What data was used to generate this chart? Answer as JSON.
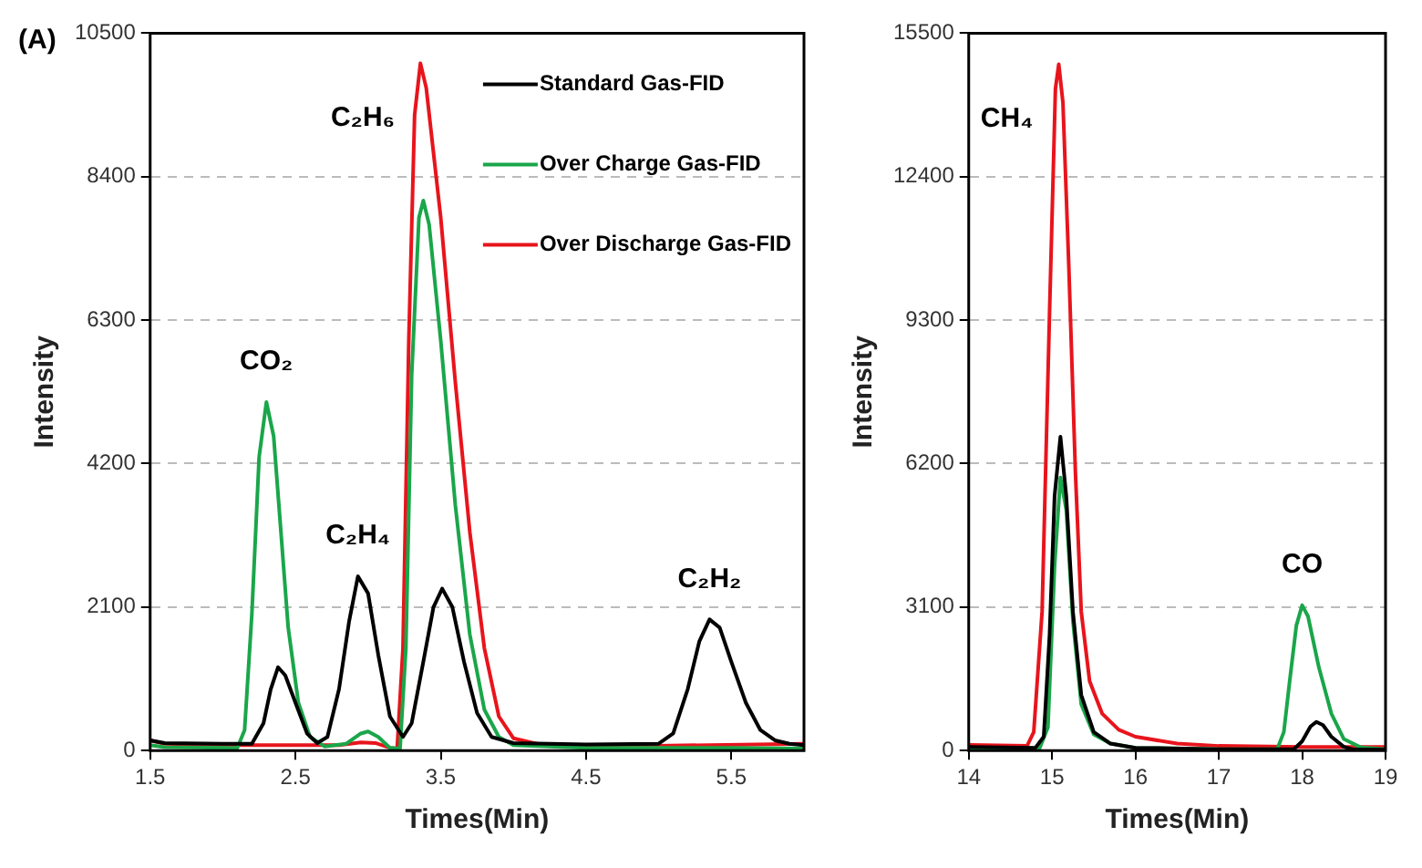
{
  "chart_data": [
    {
      "type": "line",
      "xlabel": "Times(Min)",
      "ylabel": "Intensity",
      "xlim": [
        1.5,
        6.0
      ],
      "xticks": [
        1.5,
        2.5,
        3.5,
        4.5,
        5.5
      ],
      "ylim": [
        0,
        10500
      ],
      "yticks": [
        0,
        2100,
        4200,
        6300,
        8400,
        10500
      ],
      "grid": "y",
      "legend": "top right",
      "annotations": [
        "(A)",
        {
          "text": "CO₂",
          "x": 2.3,
          "y": 5100
        },
        {
          "text": "C₂H₄",
          "x": 2.93,
          "y": 2550
        },
        {
          "text": "C₂H₆",
          "x": 3.36,
          "y": 10060
        },
        {
          "text": "C₂H₂",
          "x": 5.35,
          "y": 1920
        }
      ],
      "series": [
        {
          "name": "Standard Gas-FID",
          "color": "#000000",
          "x": [
            1.5,
            1.6,
            2.0,
            2.2,
            2.28,
            2.33,
            2.38,
            2.43,
            2.5,
            2.58,
            2.65,
            2.72,
            2.8,
            2.87,
            2.93,
            3.0,
            3.07,
            3.15,
            3.24,
            3.3,
            3.38,
            3.45,
            3.51,
            3.58,
            3.66,
            3.75,
            3.85,
            4.0,
            4.5,
            5.0,
            5.1,
            5.2,
            5.28,
            5.35,
            5.42,
            5.5,
            5.6,
            5.7,
            5.8,
            5.9,
            6.0
          ],
          "values": [
            150,
            110,
            100,
            100,
            400,
            900,
            1220,
            1100,
            700,
            250,
            110,
            200,
            900,
            1900,
            2550,
            2300,
            1400,
            500,
            200,
            400,
            1300,
            2100,
            2370,
            2100,
            1300,
            550,
            200,
            110,
            90,
            100,
            250,
            900,
            1600,
            1920,
            1800,
            1300,
            700,
            300,
            150,
            100,
            80
          ]
        },
        {
          "name": "Over Charge Gas-FID",
          "color": "#1aa64a",
          "x": [
            1.5,
            1.6,
            2.1,
            2.15,
            2.2,
            2.25,
            2.3,
            2.35,
            2.4,
            2.45,
            2.52,
            2.6,
            2.7,
            2.85,
            2.95,
            3.0,
            3.07,
            3.15,
            3.22,
            3.26,
            3.3,
            3.35,
            3.38,
            3.42,
            3.5,
            3.6,
            3.7,
            3.8,
            3.9,
            4.0,
            4.5,
            5.5,
            6.0
          ],
          "values": [
            80,
            50,
            40,
            300,
            2000,
            4300,
            5100,
            4600,
            3200,
            1800,
            700,
            200,
            60,
            100,
            250,
            280,
            200,
            40,
            30,
            1500,
            5500,
            7800,
            8050,
            7700,
            6000,
            3600,
            1700,
            600,
            200,
            80,
            40,
            40,
            30
          ]
        },
        {
          "name": "Over Discharge Gas-FID",
          "color": "#e8141c",
          "x": [
            1.5,
            1.6,
            2.0,
            2.8,
            2.95,
            3.05,
            3.15,
            3.2,
            3.24,
            3.28,
            3.32,
            3.36,
            3.4,
            3.5,
            3.6,
            3.7,
            3.8,
            3.9,
            4.0,
            4.2,
            5.0,
            6.0
          ],
          "values": [
            150,
            100,
            80,
            80,
            120,
            110,
            40,
            30,
            1500,
            6000,
            9300,
            10060,
            9700,
            7800,
            5400,
            3200,
            1500,
            500,
            180,
            80,
            70,
            100
          ]
        }
      ]
    },
    {
      "type": "line",
      "xlabel": "Times(Min)",
      "ylabel": "Intensity",
      "xlim": [
        14,
        19
      ],
      "xticks": [
        14,
        15,
        16,
        17,
        18,
        19
      ],
      "ylim": [
        0,
        15500
      ],
      "yticks": [
        0,
        3100,
        6200,
        9300,
        12400,
        15500
      ],
      "grid": "y",
      "annotations": [
        {
          "text": "CH₄",
          "x": 15.08,
          "y": 14830
        },
        {
          "text": "CO",
          "x": 18.0,
          "y": 3140
        }
      ],
      "series": [
        {
          "color": "#000000",
          "x": [
            14,
            14.8,
            14.9,
            14.97,
            15.03,
            15.1,
            15.17,
            15.25,
            15.35,
            15.5,
            15.7,
            16,
            17,
            17.9,
            18.0,
            18.1,
            18.17,
            18.25,
            18.35,
            18.5,
            18.6,
            19
          ],
          "values": [
            80,
            60,
            300,
            2500,
            5500,
            6780,
            5500,
            3000,
            1200,
            400,
            150,
            60,
            30,
            30,
            200,
            520,
            620,
            550,
            300,
            80,
            30,
            20
          ]
        },
        {
          "color": "#1aa64a",
          "x": [
            14,
            14.85,
            14.95,
            15.03,
            15.1,
            15.17,
            15.25,
            15.35,
            15.5,
            15.7,
            16,
            17,
            17.7,
            17.78,
            17.85,
            17.93,
            18.0,
            18.07,
            18.2,
            18.35,
            18.5,
            18.7,
            19
          ],
          "values": [
            60,
            50,
            500,
            4000,
            5900,
            5200,
            2800,
            1000,
            350,
            150,
            60,
            30,
            30,
            400,
            1500,
            2700,
            3140,
            2900,
            1800,
            800,
            250,
            70,
            30
          ]
        },
        {
          "color": "#e8141c",
          "x": [
            14,
            14.7,
            14.78,
            14.88,
            14.97,
            15.04,
            15.08,
            15.13,
            15.2,
            15.28,
            15.35,
            15.45,
            15.6,
            15.8,
            16,
            16.5,
            17,
            18,
            19
          ],
          "values": [
            120,
            100,
            400,
            3000,
            9500,
            14300,
            14830,
            14000,
            10500,
            6000,
            3000,
            1500,
            800,
            450,
            300,
            150,
            100,
            80,
            80
          ]
        }
      ]
    }
  ]
}
